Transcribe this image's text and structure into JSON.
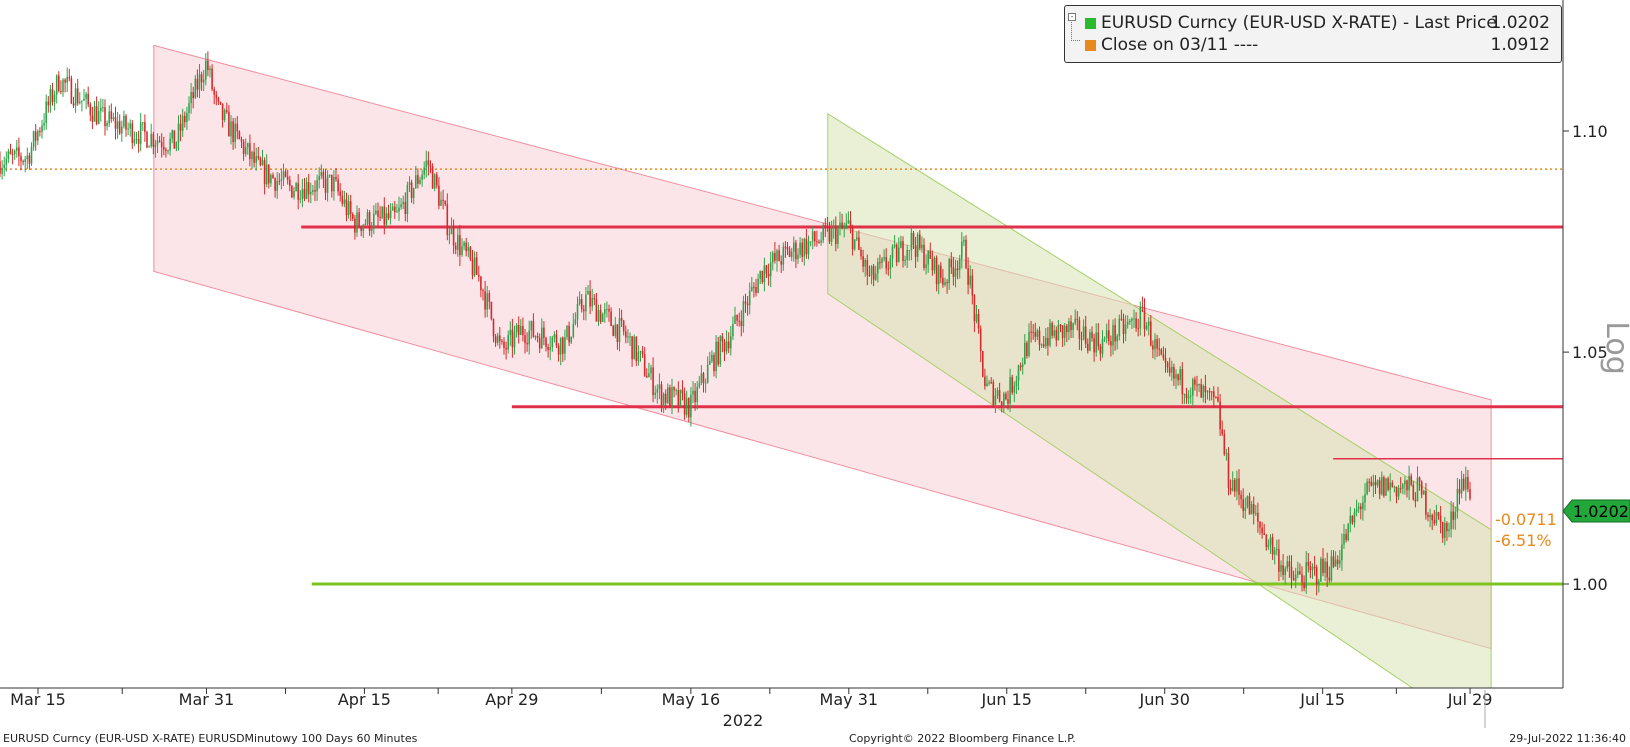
{
  "legend": {
    "series1_label": "EURUSD Curncy (EUR-USD X-RATE) - Last Price",
    "series1_value": "1.0202",
    "series2_label": "Close on 03/11 ----",
    "series2_value": "1.0912",
    "series1_color": "#2db92d",
    "series2_color": "#e8891c"
  },
  "badge": {
    "last_price": "1.0202",
    "change": "-0.0711",
    "change_pct": "-6.51%"
  },
  "axis_title": "Log",
  "year_label": "2022",
  "footer": {
    "left": "EURUSD Curncy (EUR-USD X-RATE) EURUSDMinutowy 100 Days 60 Minutes",
    "center": "Copyright© 2022 Bloomberg Finance L.P.",
    "right": "29-Jul-2022 11:36:40"
  },
  "chart_data": {
    "type": "candlestick",
    "title": "",
    "ylabel": "Log",
    "yscale": "log",
    "ylim": [
      0.977,
      1.123
    ],
    "y_ticks": [
      1.0,
      1.05,
      1.1
    ],
    "x_ticks": [
      "Mar 15",
      "Mar 31",
      "Apr 15",
      "Apr 29",
      "May 16",
      "May 31",
      "Jun 15",
      "Jun 30",
      "Jul 15",
      "Jul 29"
    ],
    "xlabel": "2022",
    "series": [
      {
        "name": "EURUSD Curncy (EUR-USD X-RATE) - Last Price",
        "price_path": [
          {
            "date": "2022-03-11",
            "value": 1.093
          },
          {
            "date": "2022-03-14",
            "value": 1.094
          },
          {
            "date": "2022-03-17",
            "value": 1.112
          },
          {
            "date": "2022-03-21",
            "value": 1.103
          },
          {
            "date": "2022-03-24",
            "value": 1.1
          },
          {
            "date": "2022-03-28",
            "value": 1.097
          },
          {
            "date": "2022-03-31",
            "value": 1.116
          },
          {
            "date": "2022-04-01",
            "value": 1.105
          },
          {
            "date": "2022-04-05",
            "value": 1.091
          },
          {
            "date": "2022-04-08",
            "value": 1.087
          },
          {
            "date": "2022-04-12",
            "value": 1.088
          },
          {
            "date": "2022-04-14",
            "value": 1.079
          },
          {
            "date": "2022-04-18",
            "value": 1.08
          },
          {
            "date": "2022-04-21",
            "value": 1.093
          },
          {
            "date": "2022-04-23",
            "value": 1.078
          },
          {
            "date": "2022-04-26",
            "value": 1.066
          },
          {
            "date": "2022-04-28",
            "value": 1.05
          },
          {
            "date": "2022-04-30",
            "value": 1.055
          },
          {
            "date": "2022-05-04",
            "value": 1.052
          },
          {
            "date": "2022-05-06",
            "value": 1.062
          },
          {
            "date": "2022-05-10",
            "value": 1.053
          },
          {
            "date": "2022-05-13",
            "value": 1.041
          },
          {
            "date": "2022-05-16",
            "value": 1.038
          },
          {
            "date": "2022-05-18",
            "value": 1.048
          },
          {
            "date": "2022-05-20",
            "value": 1.055
          },
          {
            "date": "2022-05-23",
            "value": 1.069
          },
          {
            "date": "2022-05-26",
            "value": 1.073
          },
          {
            "date": "2022-05-31",
            "value": 1.078
          },
          {
            "date": "2022-06-02",
            "value": 1.066
          },
          {
            "date": "2022-06-06",
            "value": 1.075
          },
          {
            "date": "2022-06-09",
            "value": 1.066
          },
          {
            "date": "2022-06-11",
            "value": 1.073
          },
          {
            "date": "2022-06-13",
            "value": 1.042
          },
          {
            "date": "2022-06-15",
            "value": 1.04
          },
          {
            "date": "2022-06-17",
            "value": 1.052
          },
          {
            "date": "2022-06-21",
            "value": 1.055
          },
          {
            "date": "2022-06-24",
            "value": 1.052
          },
          {
            "date": "2022-06-28",
            "value": 1.058
          },
          {
            "date": "2022-06-30",
            "value": 1.045
          },
          {
            "date": "2022-07-02",
            "value": 1.043
          },
          {
            "date": "2022-07-05",
            "value": 1.038
          },
          {
            "date": "2022-07-06",
            "value": 1.023
          },
          {
            "date": "2022-07-08",
            "value": 1.016
          },
          {
            "date": "2022-07-12",
            "value": 1.001
          },
          {
            "date": "2022-07-14",
            "value": 1.002
          },
          {
            "date": "2022-07-16",
            "value": 1.004
          },
          {
            "date": "2022-07-19",
            "value": 1.019
          },
          {
            "date": "2022-07-21",
            "value": 1.021
          },
          {
            "date": "2022-07-24",
            "value": 1.02
          },
          {
            "date": "2022-07-26",
            "value": 1.013
          },
          {
            "date": "2022-07-27",
            "value": 1.011
          },
          {
            "date": "2022-07-28",
            "value": 1.022
          },
          {
            "date": "2022-07-29",
            "value": 1.0202
          }
        ]
      },
      {
        "name": "Close on 03/11",
        "value": 1.0912
      }
    ],
    "horizontal_levels": [
      {
        "value": 1.078,
        "start": "2022-04-09",
        "color": "#e0304a"
      },
      {
        "value": 1.038,
        "start": "2022-04-29",
        "color": "#e0304a"
      },
      {
        "value": 1.0267,
        "start": "2022-07-16",
        "color": "#e0304a"
      },
      {
        "value": 1.0,
        "start": "2022-04-10",
        "color": "#7cc520"
      }
    ],
    "channels": [
      {
        "color": "#f6c6cf",
        "from": "2022-03-26",
        "to": "2022-07-31",
        "upper_start": 1.12,
        "upper_end": 1.0395,
        "lower_start": 1.068,
        "lower_end": 0.9865
      },
      {
        "color": "#d7e4b2",
        "from": "2022-05-29",
        "to": "2022-07-31",
        "upper_start": 1.104,
        "upper_end": 1.0115,
        "lower_start": 1.063,
        "lower_end": 0.9675
      }
    ],
    "grid": false,
    "legend_position": "top-right"
  }
}
